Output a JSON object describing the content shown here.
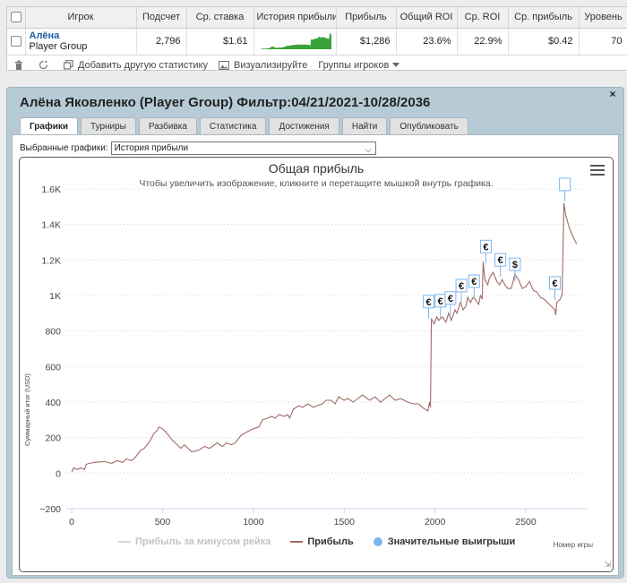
{
  "stats_table": {
    "headers": [
      "Игрок",
      "Подсчет",
      "Ср. ставка",
      "История прибыли",
      "Прибыль",
      "Общий ROI",
      "Ср. ROI",
      "Ср. прибыль",
      "Уровень"
    ],
    "row": {
      "player_name": "Алёна",
      "player_group": "Player Group",
      "count": "2,796",
      "avg_stake": "$1.61",
      "profit": "$1,286",
      "total_roi": "23.6%",
      "avg_roi": "22.9%",
      "avg_profit": "$0.42",
      "level": "70"
    },
    "sparkline_color": "#3aa23a"
  },
  "toolbar": {
    "add_stats_label": "Добавить другую статистику",
    "visualize_label": "Визуализируйте",
    "player_groups_label": "Группы игроков"
  },
  "panel": {
    "title": "Алёна Яковленко (Player Group) Фильтр:04/21/2021-10/28/2036",
    "close_label": "×",
    "tabs": [
      "Графики",
      "Турниры",
      "Разбивка",
      "Статистика",
      "Достижения",
      "Найти",
      "Опубликовать"
    ],
    "active_tab": "Графики",
    "graph_select_label": "Выбранные графики:",
    "graph_select_value": "История прибыли"
  },
  "chart_data": {
    "type": "line",
    "title": "Общая прибыль",
    "subtitle": "Чтобы увеличить изображение, кликните и перетащите мышкой внутрь графика.",
    "xlabel": "Номер игры",
    "ylabel": "Суммарный итог (USD)",
    "xlim": [
      -30,
      2840
    ],
    "ylim": [
      -200,
      1600
    ],
    "x_ticks": [
      0,
      500,
      1000,
      1500,
      2000,
      2500
    ],
    "y_ticks": [
      -200,
      0,
      200,
      400,
      600,
      800,
      1000,
      1200,
      1400,
      1600
    ],
    "y_tick_labels": [
      "−200",
      "0",
      "200",
      "400",
      "600",
      "800",
      "1K",
      "1.2K",
      "1.4K",
      "1.6K"
    ],
    "grid": true,
    "legend_position": "bottom",
    "colors": {
      "profit": "#a06a65",
      "without_rake": "#cccccc",
      "big_wins": "#7cb5ec"
    },
    "series": [
      {
        "name": "Прибыль",
        "points": [
          [
            0,
            5
          ],
          [
            10,
            30
          ],
          [
            30,
            20
          ],
          [
            50,
            30
          ],
          [
            70,
            20
          ],
          [
            80,
            50
          ],
          [
            120,
            60
          ],
          [
            180,
            65
          ],
          [
            220,
            55
          ],
          [
            250,
            70
          ],
          [
            280,
            60
          ],
          [
            300,
            80
          ],
          [
            330,
            70
          ],
          [
            350,
            90
          ],
          [
            380,
            130
          ],
          [
            400,
            140
          ],
          [
            430,
            180
          ],
          [
            450,
            220
          ],
          [
            470,
            240
          ],
          [
            480,
            260
          ],
          [
            500,
            250
          ],
          [
            520,
            230
          ],
          [
            550,
            190
          ],
          [
            580,
            160
          ],
          [
            600,
            140
          ],
          [
            620,
            160
          ],
          [
            640,
            140
          ],
          [
            660,
            120
          ],
          [
            700,
            130
          ],
          [
            730,
            150
          ],
          [
            760,
            140
          ],
          [
            800,
            170
          ],
          [
            830,
            150
          ],
          [
            850,
            170
          ],
          [
            880,
            160
          ],
          [
            900,
            170
          ],
          [
            930,
            210
          ],
          [
            960,
            230
          ],
          [
            1000,
            250
          ],
          [
            1030,
            260
          ],
          [
            1050,
            300
          ],
          [
            1080,
            310
          ],
          [
            1100,
            320
          ],
          [
            1120,
            310
          ],
          [
            1140,
            330
          ],
          [
            1170,
            320
          ],
          [
            1190,
            330
          ],
          [
            1200,
            310
          ],
          [
            1220,
            360
          ],
          [
            1250,
            380
          ],
          [
            1270,
            370
          ],
          [
            1300,
            390
          ],
          [
            1330,
            370
          ],
          [
            1350,
            380
          ],
          [
            1380,
            390
          ],
          [
            1400,
            410
          ],
          [
            1430,
            410
          ],
          [
            1450,
            390
          ],
          [
            1470,
            430
          ],
          [
            1500,
            410
          ],
          [
            1520,
            420
          ],
          [
            1550,
            400
          ],
          [
            1600,
            440
          ],
          [
            1640,
            410
          ],
          [
            1670,
            430
          ],
          [
            1700,
            400
          ],
          [
            1750,
            440
          ],
          [
            1780,
            410
          ],
          [
            1810,
            420
          ],
          [
            1850,
            400
          ],
          [
            1880,
            390
          ],
          [
            1910,
            390
          ],
          [
            1930,
            370
          ],
          [
            1960,
            350
          ],
          [
            1970,
            400
          ],
          [
            1975,
            370
          ],
          [
            1980,
            870
          ],
          [
            1995,
            840
          ],
          [
            2010,
            880
          ],
          [
            2020,
            860
          ],
          [
            2040,
            880
          ],
          [
            2060,
            850
          ],
          [
            2075,
            900
          ],
          [
            2090,
            860
          ],
          [
            2110,
            920
          ],
          [
            2120,
            900
          ],
          [
            2140,
            960
          ],
          [
            2155,
            920
          ],
          [
            2170,
            940
          ],
          [
            2180,
            990
          ],
          [
            2195,
            960
          ],
          [
            2210,
            990
          ],
          [
            2220,
            980
          ],
          [
            2240,
            950
          ],
          [
            2250,
            1000
          ],
          [
            2260,
            980
          ],
          [
            2265,
            1190
          ],
          [
            2275,
            1090
          ],
          [
            2290,
            1060
          ],
          [
            2300,
            1100
          ],
          [
            2320,
            1130
          ],
          [
            2340,
            1080
          ],
          [
            2355,
            1060
          ],
          [
            2370,
            1090
          ],
          [
            2385,
            1060
          ],
          [
            2400,
            1040
          ],
          [
            2420,
            1040
          ],
          [
            2440,
            1120
          ],
          [
            2460,
            1090
          ],
          [
            2480,
            1040
          ],
          [
            2500,
            1050
          ],
          [
            2520,
            1080
          ],
          [
            2540,
            1030
          ],
          [
            2560,
            1020
          ],
          [
            2580,
            990
          ],
          [
            2600,
            980
          ],
          [
            2620,
            960
          ],
          [
            2640,
            940
          ],
          [
            2660,
            920
          ],
          [
            2665,
            890
          ],
          [
            2670,
            960
          ],
          [
            2690,
            980
          ],
          [
            2700,
            1010
          ],
          [
            2710,
            1520
          ],
          [
            2720,
            1450
          ],
          [
            2740,
            1380
          ],
          [
            2760,
            1330
          ],
          [
            2780,
            1290
          ]
        ]
      }
    ],
    "legend": [
      {
        "label": "Прибыль за минусом рейка",
        "kind": "line",
        "color": "#cccccc",
        "dimmed": true
      },
      {
        "label": "Прибыль",
        "kind": "line",
        "color": "#a06a65",
        "dimmed": false
      },
      {
        "label": "Значительные выигрыши",
        "kind": "dot",
        "color": "#7cb5ec",
        "dimmed": false
      }
    ],
    "big_win_markers": [
      {
        "x": 1965,
        "y": 870,
        "symbol": "€"
      },
      {
        "x": 2030,
        "y": 875,
        "symbol": "€"
      },
      {
        "x": 2085,
        "y": 890,
        "symbol": "€"
      },
      {
        "x": 2145,
        "y": 960,
        "symbol": "€"
      },
      {
        "x": 2215,
        "y": 985,
        "symbol": "€"
      },
      {
        "x": 2280,
        "y": 1180,
        "symbol": "€"
      },
      {
        "x": 2360,
        "y": 1105,
        "symbol": "€"
      },
      {
        "x": 2440,
        "y": 1080,
        "symbol": "$"
      },
      {
        "x": 2660,
        "y": 975,
        "symbol": "€"
      },
      {
        "x": 2715,
        "y": 1530,
        "symbol": ""
      }
    ]
  }
}
